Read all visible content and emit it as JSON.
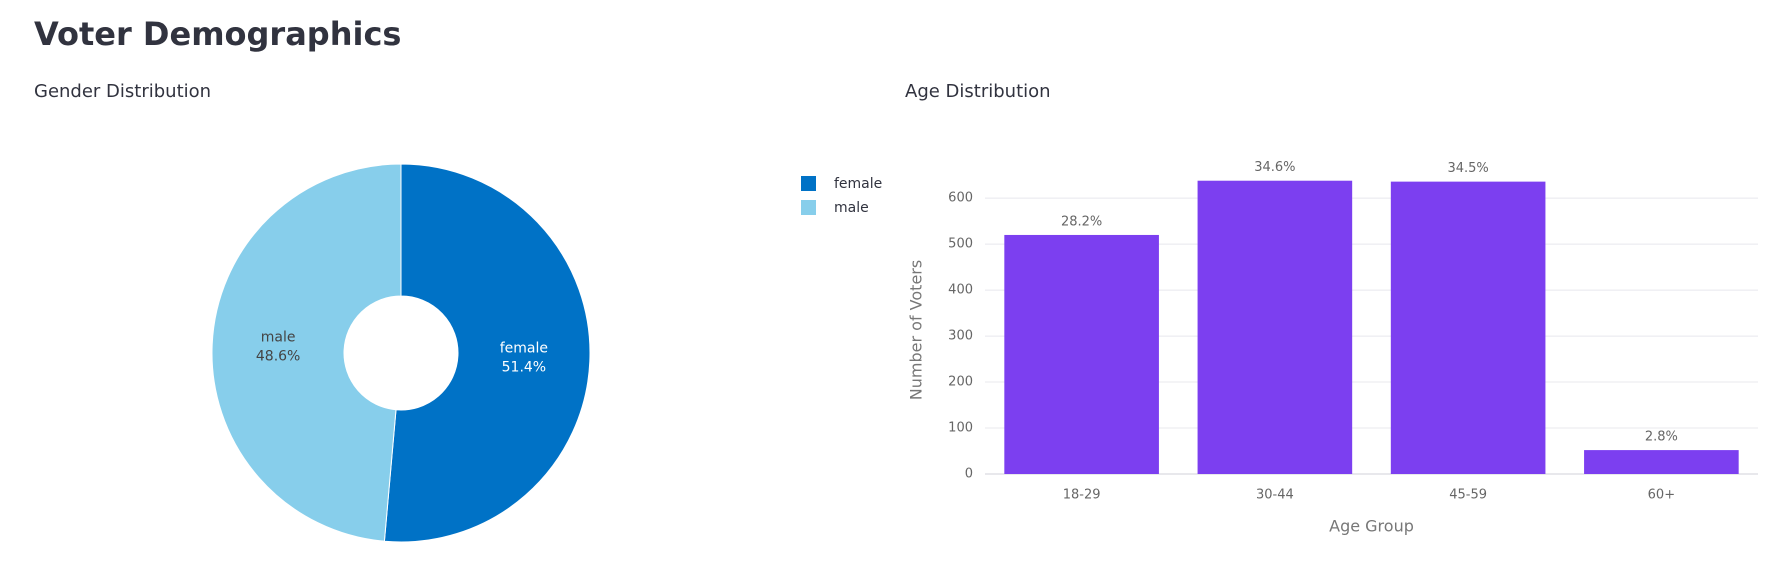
{
  "title": "Voter Demographics",
  "chart_data": [
    {
      "type": "pie",
      "title": "Gender Distribution",
      "labels": [
        "female",
        "male"
      ],
      "values": [
        51.4,
        48.6
      ],
      "value_labels": [
        "51.4%",
        "48.6%"
      ],
      "colors": [
        "#0072c6",
        "#87ceeb"
      ],
      "hole": true,
      "legend": "top-right"
    },
    {
      "type": "bar",
      "title": "Age Distribution",
      "categories": [
        "18-29",
        "30-44",
        "45-59",
        "60+"
      ],
      "values": [
        520,
        638,
        636,
        52
      ],
      "percent_labels": [
        "28.2%",
        "34.6%",
        "34.5%",
        "2.8%"
      ],
      "color": "#7c3ff0",
      "xlabel": "Age Group",
      "ylabel": "Number of Voters",
      "ylim": [
        0,
        670
      ],
      "yticks": [
        0,
        100,
        200,
        300,
        400,
        500,
        600
      ],
      "grid": true
    }
  ]
}
